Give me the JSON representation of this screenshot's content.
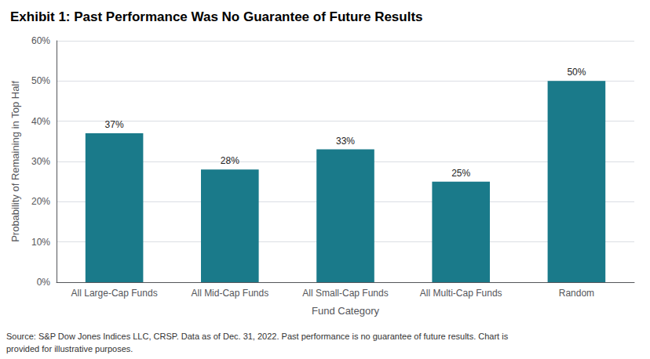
{
  "chart_data": {
    "type": "bar",
    "title": "Exhibit 1: Past Performance Was No Guarantee of Future Results",
    "categories": [
      "All Large-Cap Funds",
      "All Mid-Cap Funds",
      "All Small-Cap Funds",
      "All Multi-Cap Funds",
      "Random"
    ],
    "values": [
      37,
      28,
      33,
      25,
      50
    ],
    "value_labels": [
      "37%",
      "28%",
      "33%",
      "25%",
      "50%"
    ],
    "data_labels": true,
    "color": "#1a7a8a",
    "xlabel": "Fund Category",
    "ylabel": "Probability of Remaining in Top Half",
    "ylim": [
      0,
      60
    ],
    "yticks": [
      {
        "value": 0,
        "label": "0%"
      },
      {
        "value": 10,
        "label": "10%"
      },
      {
        "value": 20,
        "label": "20%"
      },
      {
        "value": 30,
        "label": "30%"
      },
      {
        "value": 40,
        "label": "40%"
      },
      {
        "value": 50,
        "label": "50%"
      },
      {
        "value": 60,
        "label": "60%"
      }
    ],
    "grid": true,
    "annotations": [
      "Source: S&P Dow Jones Indices LLC, CRSP. Data as of Dec. 31, 2022. Past performance is no guarantee of future results. Chart is",
      "provided for illustrative purposes."
    ]
  }
}
